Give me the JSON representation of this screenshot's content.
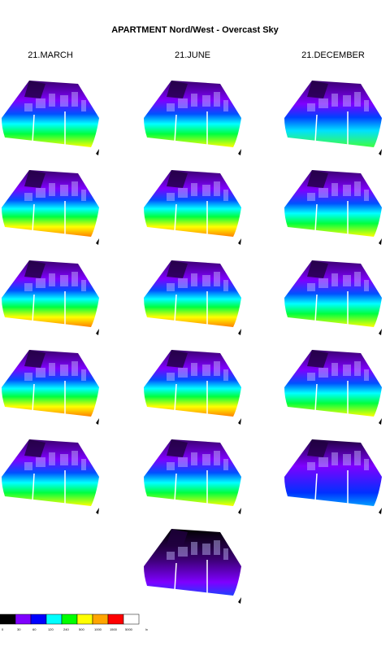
{
  "title": "APARTMENT Nord/West - Overcast Sky",
  "columns": [
    "21.MARCH",
    "21.JUNE",
    "21.DECEMBER"
  ],
  "legend": {
    "colors": [
      "#000000",
      "#7f00ff",
      "#0000ff",
      "#00ffff",
      "#00ff00",
      "#ffff00",
      "#ffa500",
      "#ff0000",
      "#ffffff"
    ],
    "labels": [
      "0",
      "30",
      "60",
      "120",
      "240",
      "500",
      "1000",
      "1500",
      "5000"
    ],
    "unit": "lx"
  }
}
